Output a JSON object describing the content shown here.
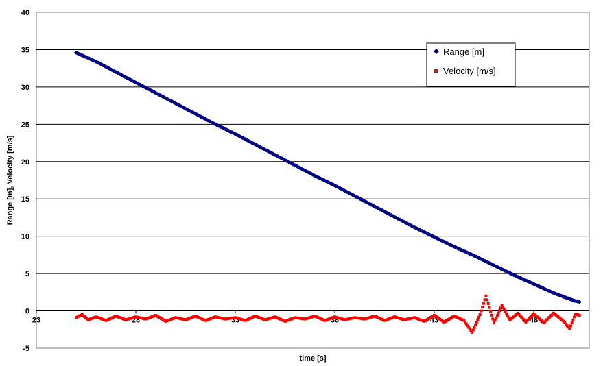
{
  "chart_data": {
    "type": "scatter",
    "title": "",
    "xlabel": "time [s]",
    "ylabel": "Range [m], Velocity [m/s]",
    "xlim": [
      23,
      51
    ],
    "ylim": [
      -5,
      40
    ],
    "xticks": [
      23,
      28,
      33,
      38,
      43,
      48
    ],
    "yticks": [
      -5,
      0,
      5,
      10,
      15,
      20,
      25,
      30,
      35,
      40
    ],
    "grid": "horizontal",
    "legend": "top-right",
    "series": [
      {
        "name": "Range [m]",
        "color": "#000080",
        "marker": "diamond",
        "points": [
          [
            25.0,
            34.6
          ],
          [
            26.0,
            33.4
          ],
          [
            27.0,
            32.0
          ],
          [
            28.0,
            30.6
          ],
          [
            29.0,
            29.2
          ],
          [
            30.0,
            27.8
          ],
          [
            31.0,
            26.4
          ],
          [
            32.0,
            25.0
          ],
          [
            33.0,
            23.7
          ],
          [
            34.0,
            22.3
          ],
          [
            35.0,
            20.9
          ],
          [
            36.0,
            19.5
          ],
          [
            37.0,
            18.1
          ],
          [
            38.0,
            16.8
          ],
          [
            39.0,
            15.4
          ],
          [
            40.0,
            14.0
          ],
          [
            41.0,
            12.6
          ],
          [
            42.0,
            11.2
          ],
          [
            43.0,
            9.9
          ],
          [
            44.0,
            8.6
          ],
          [
            45.0,
            7.4
          ],
          [
            46.0,
            6.1
          ],
          [
            47.0,
            4.8
          ],
          [
            48.0,
            3.6
          ],
          [
            49.0,
            2.4
          ],
          [
            50.0,
            1.4
          ],
          [
            50.3,
            1.2
          ]
        ]
      },
      {
        "name": "Velocity [m/s]",
        "color": "#ff0000",
        "marker": "square",
        "points": [
          [
            25.0,
            -0.9
          ],
          [
            25.3,
            -0.5
          ],
          [
            25.6,
            -1.2
          ],
          [
            26.0,
            -0.8
          ],
          [
            26.5,
            -1.3
          ],
          [
            27.0,
            -0.7
          ],
          [
            27.5,
            -1.2
          ],
          [
            28.0,
            -0.8
          ],
          [
            28.5,
            -1.1
          ],
          [
            29.0,
            -0.6
          ],
          [
            29.5,
            -1.4
          ],
          [
            30.0,
            -0.9
          ],
          [
            30.5,
            -1.2
          ],
          [
            31.0,
            -0.7
          ],
          [
            31.5,
            -1.3
          ],
          [
            32.0,
            -0.8
          ],
          [
            32.5,
            -1.1
          ],
          [
            33.0,
            -0.9
          ],
          [
            33.5,
            -1.3
          ],
          [
            34.0,
            -0.7
          ],
          [
            34.5,
            -1.2
          ],
          [
            35.0,
            -0.8
          ],
          [
            35.5,
            -1.4
          ],
          [
            36.0,
            -0.9
          ],
          [
            36.5,
            -1.1
          ],
          [
            37.0,
            -0.7
          ],
          [
            37.5,
            -1.3
          ],
          [
            38.0,
            -0.8
          ],
          [
            38.5,
            -1.2
          ],
          [
            39.0,
            -0.9
          ],
          [
            39.5,
            -1.1
          ],
          [
            40.0,
            -0.7
          ],
          [
            40.5,
            -1.3
          ],
          [
            41.0,
            -0.8
          ],
          [
            41.5,
            -1.2
          ],
          [
            42.0,
            -0.9
          ],
          [
            42.5,
            -1.4
          ],
          [
            43.0,
            -0.6
          ],
          [
            43.5,
            -1.5
          ],
          [
            44.0,
            -0.7
          ],
          [
            44.5,
            -1.3
          ],
          [
            44.9,
            -2.9
          ],
          [
            45.3,
            -0.5
          ],
          [
            45.6,
            2.0
          ],
          [
            46.0,
            -1.6
          ],
          [
            46.4,
            0.7
          ],
          [
            46.8,
            -1.2
          ],
          [
            47.2,
            -0.3
          ],
          [
            47.6,
            -1.5
          ],
          [
            48.0,
            -0.4
          ],
          [
            48.5,
            -1.6
          ],
          [
            49.0,
            -0.3
          ],
          [
            49.5,
            -1.4
          ],
          [
            49.8,
            -2.4
          ],
          [
            50.1,
            -0.4
          ],
          [
            50.3,
            -0.6
          ]
        ]
      }
    ]
  }
}
